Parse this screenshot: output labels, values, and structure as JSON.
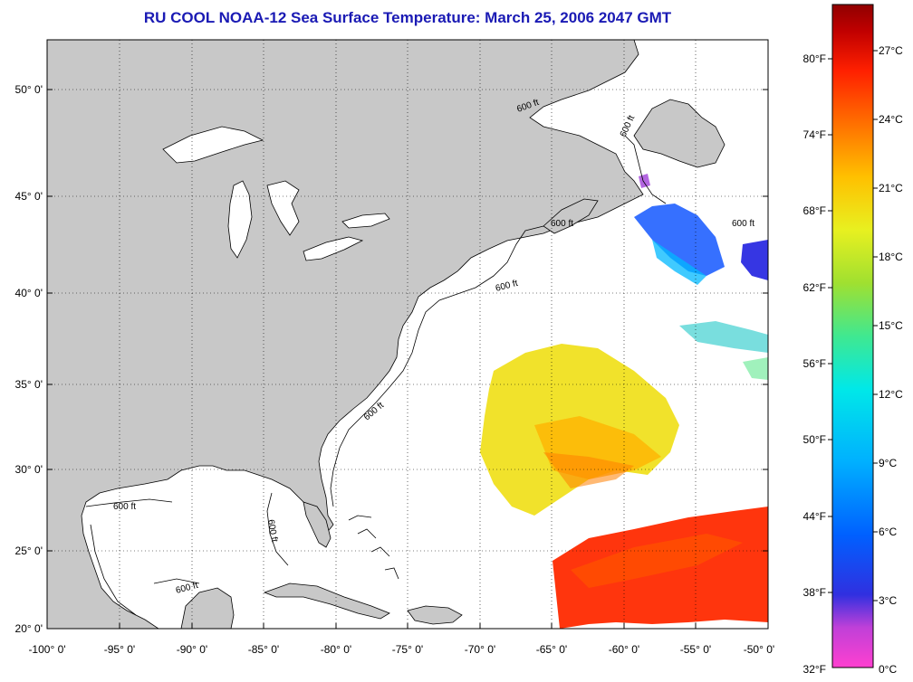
{
  "title": "RU COOL  NOAA-12  Sea Surface Temperature:  March 25, 2006 2047 GMT",
  "latitude_labels": [
    "50° 0'",
    "45° 0'",
    "40° 0'",
    "35° 0'",
    "30° 0'",
    "25° 0'",
    "20° 0'"
  ],
  "latitude_values": [
    50,
    45,
    40,
    35,
    30,
    25,
    20
  ],
  "longitude_labels": [
    "-100° 0'",
    "-95° 0'",
    "-90° 0'",
    "-85° 0'",
    "-80° 0'",
    "-75° 0'",
    "-70° 0'",
    "-65° 0'",
    "-60° 0'",
    "-55° 0'",
    "-50° 0'"
  ],
  "longitude_values": [
    -100,
    -95,
    -90,
    -85,
    -80,
    -75,
    -70,
    -65,
    -60,
    -55,
    -50
  ],
  "contour_label": "600 ft",
  "colorbar": {
    "fahrenheit_labels": [
      "80°F",
      "74°F",
      "68°F",
      "62°F",
      "56°F",
      "50°F",
      "44°F",
      "38°F",
      "32°F"
    ],
    "fahrenheit_values": [
      80,
      74,
      68,
      62,
      56,
      50,
      44,
      38,
      32
    ],
    "celsius_labels": [
      "27°C",
      "24°C",
      "21°C",
      "18°C",
      "15°C",
      "12°C",
      "9°C",
      "6°C",
      "3°C",
      "0°C"
    ],
    "celsius_values": [
      27,
      24,
      21,
      18,
      15,
      12,
      9,
      6,
      3,
      0
    ],
    "range_c": [
      0,
      28.5
    ],
    "gradient": [
      "#ff40d0",
      "#b040d8",
      "#3030e0",
      "#0060ff",
      "#00a8ff",
      "#00e8e8",
      "#30e8a0",
      "#80e040",
      "#e0f020",
      "#ffd000",
      "#ff9000",
      "#ff3000",
      "#e00000",
      "#900000"
    ]
  },
  "colors": {
    "land": "#c8c8c8",
    "ocean_no_data": "#ffffff",
    "title": "#1a1ab4"
  }
}
